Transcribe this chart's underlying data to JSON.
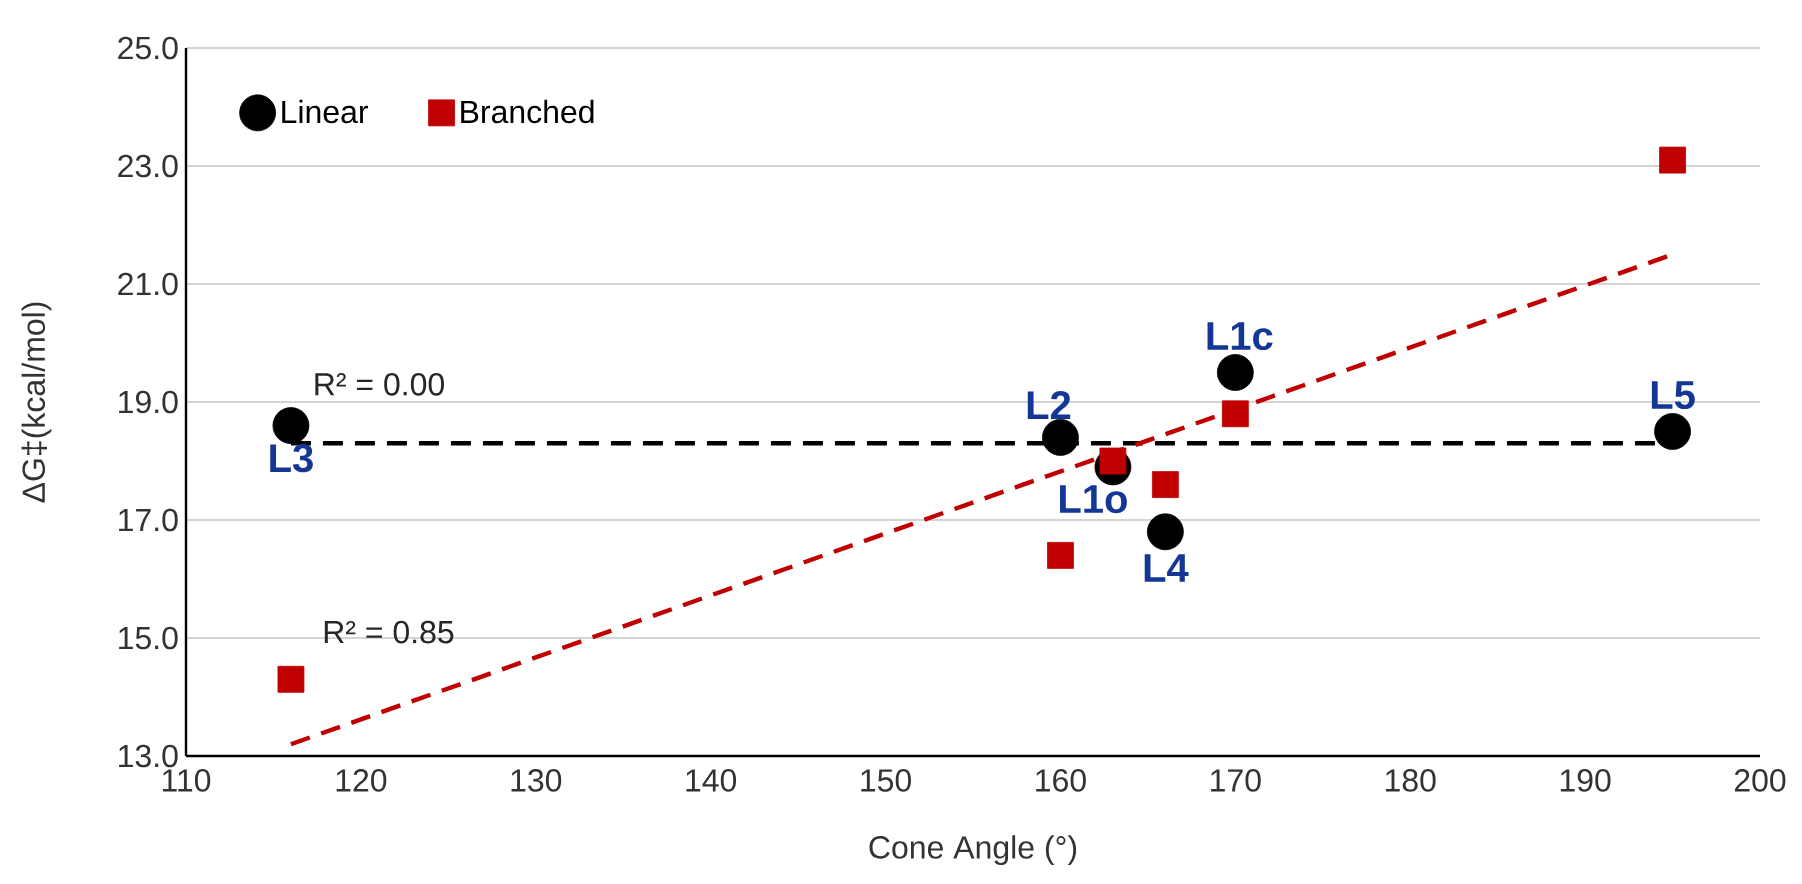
{
  "chart_data": {
    "type": "scatter",
    "xlabel": "Cone Angle (°)",
    "ylabel": "ΔG‡(kcal/mol)",
    "xlim": [
      110,
      200
    ],
    "xticks": [
      110,
      120,
      130,
      140,
      150,
      160,
      170,
      180,
      190,
      200
    ],
    "ylim": [
      13,
      25
    ],
    "yticks": [
      {
        "value": 13,
        "label": "13.0"
      },
      {
        "value": 15,
        "label": "15.0"
      },
      {
        "value": 17,
        "label": "17.0"
      },
      {
        "value": 19,
        "label": "19.0"
      },
      {
        "value": 21,
        "label": "21.0"
      },
      {
        "value": 23,
        "label": "23.0"
      },
      {
        "value": 25,
        "label": "25.0"
      }
    ],
    "grid": "y",
    "legend": "top left",
    "series": [
      {
        "name": "Linear",
        "marker": "circle",
        "color": "#000000",
        "x": [
          116,
          160,
          163,
          166,
          170,
          195
        ],
        "values": [
          18.6,
          18.4,
          17.9,
          16.8,
          19.5,
          18.5
        ]
      },
      {
        "name": "Branched",
        "marker": "square",
        "color": "#c00000",
        "x": [
          116,
          160,
          163,
          166,
          170,
          195
        ],
        "values": [
          14.3,
          16.4,
          18.0,
          17.6,
          18.8,
          23.1
        ]
      },
      {
        "type": "line",
        "line_style": "dashed",
        "color": "#000000",
        "x": [
          116,
          195
        ],
        "values": [
          18.3,
          18.3
        ]
      },
      {
        "type": "line",
        "line_style": "dashed",
        "color": "#c00000",
        "x": [
          116,
          195
        ],
        "values": [
          13.2,
          21.5
        ]
      }
    ],
    "annotations": [
      {
        "text": "L3",
        "x": 116,
        "y": 18.6
      },
      {
        "text": "L2",
        "x": 160,
        "y": 18.4
      },
      {
        "text": "L1o",
        "x": 163,
        "y": 17.9
      },
      {
        "text": "L4",
        "x": 166,
        "y": 16.8
      },
      {
        "text": "L1c",
        "x": 170,
        "y": 19.5
      },
      {
        "text": "L5",
        "x": 195,
        "y": 18.5
      },
      "R² = 0.00",
      "R² = 0.85"
    ]
  }
}
